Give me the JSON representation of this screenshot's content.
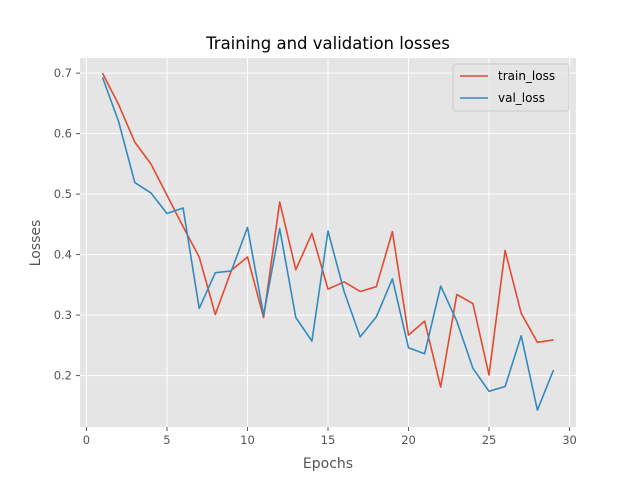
{
  "chart_data": {
    "type": "line",
    "title": "Training and validation losses",
    "xlabel": "Epochs",
    "ylabel": "Losses",
    "xlim": [
      -0.4,
      30.4
    ],
    "ylim": [
      0.115,
      0.725
    ],
    "xticks": [
      0,
      5,
      10,
      15,
      20,
      25,
      30
    ],
    "yticks": [
      0.2,
      0.3,
      0.4,
      0.5,
      0.6,
      0.7
    ],
    "xtick_labels": [
      "0",
      "5",
      "10",
      "15",
      "20",
      "25",
      "30"
    ],
    "ytick_labels": [
      "0.2",
      "0.3",
      "0.4",
      "0.5",
      "0.6",
      "0.7"
    ],
    "grid": true,
    "legend_position": "top-right",
    "x": [
      1,
      2,
      3,
      4,
      5,
      6,
      7,
      8,
      9,
      10,
      11,
      12,
      13,
      14,
      15,
      16,
      17,
      18,
      19,
      20,
      21,
      22,
      23,
      24,
      25,
      26,
      27,
      28,
      29
    ],
    "series": [
      {
        "name": "train_loss",
        "color": "#E24A33",
        "values": [
          0.7,
          0.648,
          0.586,
          0.55,
          0.498,
          0.446,
          0.396,
          0.301,
          0.374,
          0.396,
          0.296,
          0.487,
          0.375,
          0.435,
          0.343,
          0.355,
          0.339,
          0.347,
          0.438,
          0.267,
          0.29,
          0.181,
          0.334,
          0.319,
          0.201,
          0.407,
          0.303,
          0.255,
          0.259
        ]
      },
      {
        "name": "val_loss",
        "color": "#348ABD",
        "values": [
          0.693,
          0.62,
          0.519,
          0.502,
          0.468,
          0.477,
          0.311,
          0.37,
          0.373,
          0.445,
          0.3,
          0.443,
          0.296,
          0.257,
          0.439,
          0.339,
          0.264,
          0.297,
          0.36,
          0.246,
          0.236,
          0.348,
          0.29,
          0.212,
          0.174,
          0.182,
          0.266,
          0.143,
          0.209
        ]
      }
    ]
  }
}
